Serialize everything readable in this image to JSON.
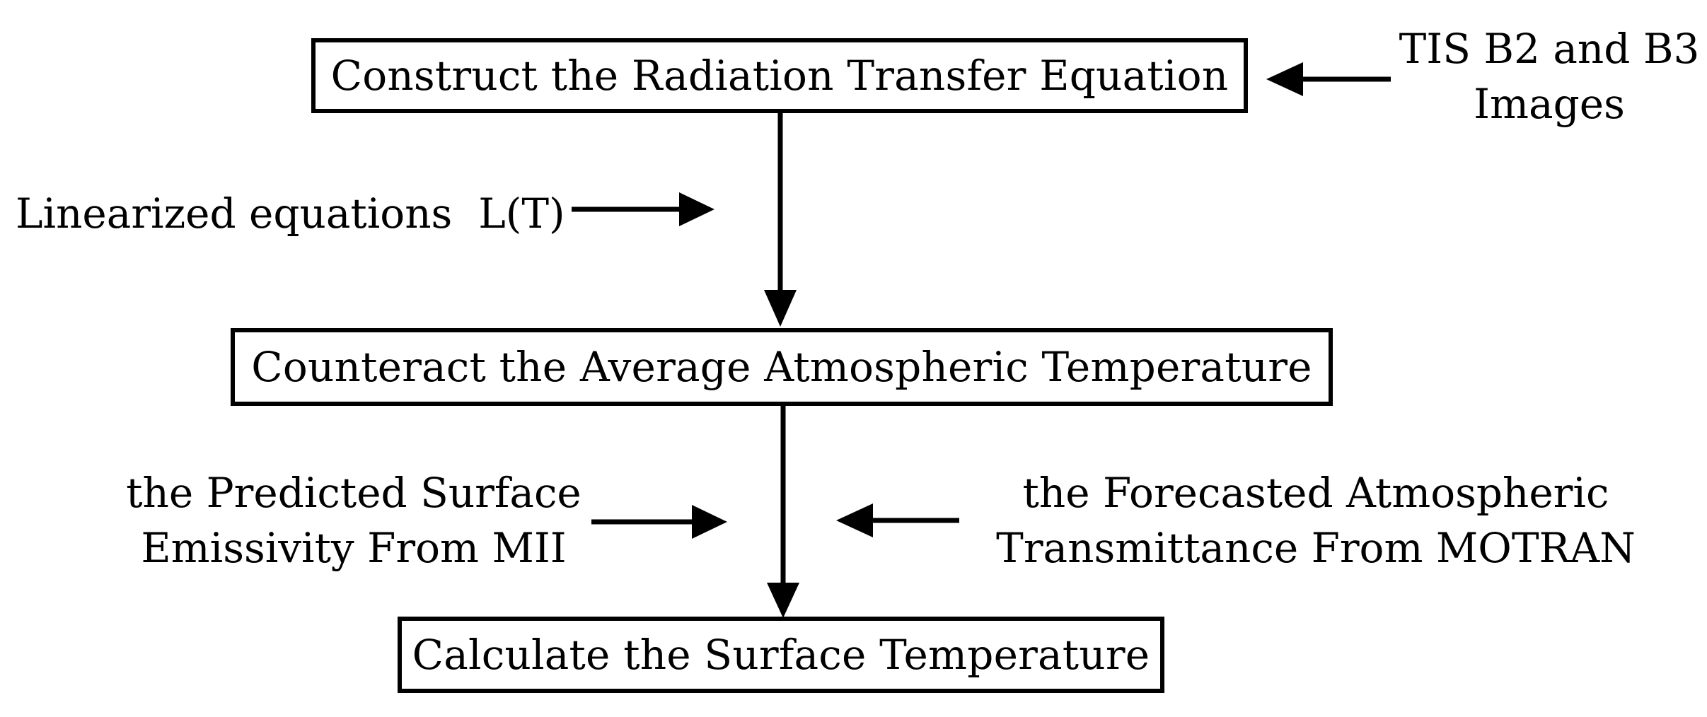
{
  "diagram": {
    "boxes": {
      "construct": "Construct the Radiation Transfer Equation",
      "counteract": "Counteract the Average Atmospheric Temperature",
      "calculate": "Calculate the Surface Temperature"
    },
    "inputs": {
      "tis_images": {
        "line1": "TIS B2 and B3",
        "line2": "Images"
      },
      "linearized": "Linearized equations  L(T)",
      "emissivity": {
        "line1": "the Predicted Surface",
        "line2": "Emissivity From MII"
      },
      "transmittance": {
        "line1": "the Forecasted Atmospheric",
        "line2": "Transmittance From MOTRAN"
      }
    }
  }
}
